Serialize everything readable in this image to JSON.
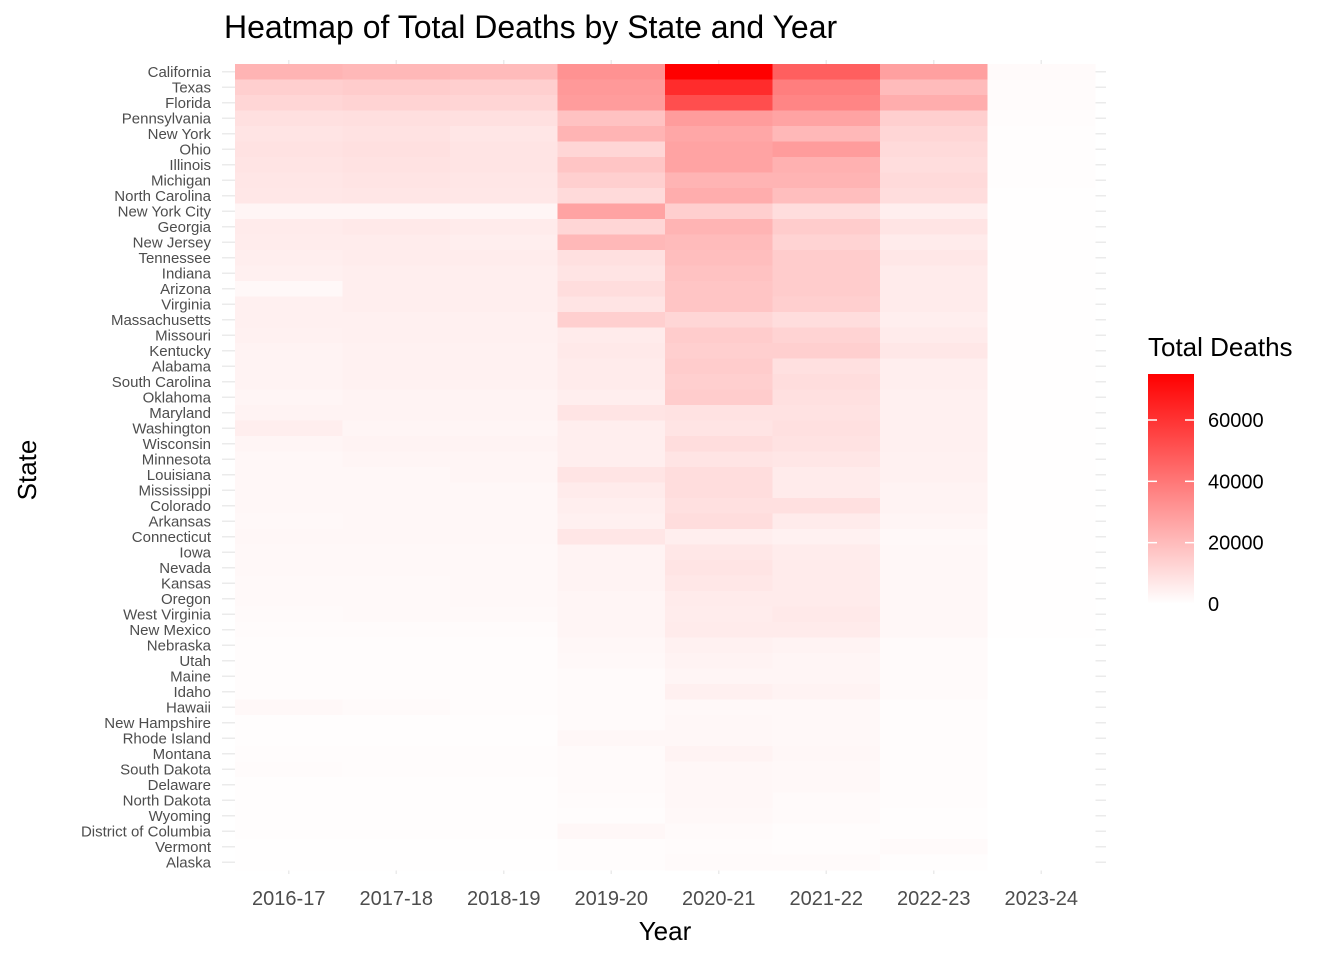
{
  "chart_data": {
    "type": "heatmap",
    "title": "Heatmap of Total Deaths by State and Year",
    "xlabel": "Year",
    "ylabel": "State",
    "x_categories": [
      "2016-17",
      "2017-18",
      "2018-19",
      "2019-20",
      "2020-21",
      "2021-22",
      "2022-23",
      "2023-24"
    ],
    "y_categories": [
      "California",
      "Texas",
      "Florida",
      "Pennsylvania",
      "New York",
      "Ohio",
      "Illinois",
      "Michigan",
      "North Carolina",
      "New York City",
      "Georgia",
      "New Jersey",
      "Tennessee",
      "Indiana",
      "Arizona",
      "Virginia",
      "Massachusetts",
      "Missouri",
      "Kentucky",
      "Alabama",
      "South Carolina",
      "Oklahoma",
      "Maryland",
      "Washington",
      "Wisconsin",
      "Minnesota",
      "Louisiana",
      "Mississippi",
      "Colorado",
      "Arkansas",
      "Connecticut",
      "Iowa",
      "Nevada",
      "Kansas",
      "Oregon",
      "West Virginia",
      "New Mexico",
      "Nebraska",
      "Utah",
      "Maine",
      "Idaho",
      "Hawaii",
      "New Hampshire",
      "Rhode Island",
      "Montana",
      "South Dakota",
      "Delaware",
      "North Dakota",
      "Wyoming",
      "District of Columbia",
      "Vermont",
      "Alaska"
    ],
    "values": [
      [
        22000,
        21000,
        20000,
        32000,
        75000,
        47000,
        28000,
        1500
      ],
      [
        14000,
        15000,
        14000,
        30000,
        62000,
        38000,
        20000,
        1200
      ],
      [
        12000,
        13000,
        12500,
        29000,
        52000,
        36000,
        24000,
        1100
      ],
      [
        9000,
        9500,
        9000,
        18000,
        29000,
        27000,
        14000,
        800
      ],
      [
        8000,
        8500,
        7500,
        22000,
        26000,
        21000,
        12000,
        700
      ],
      [
        8500,
        9000,
        8000,
        12000,
        27000,
        29000,
        11000,
        600
      ],
      [
        8000,
        8500,
        8000,
        17000,
        27000,
        23000,
        10000,
        600
      ],
      [
        7500,
        8000,
        7500,
        14000,
        22000,
        22000,
        11000,
        500
      ],
      [
        7000,
        7500,
        7000,
        11000,
        24000,
        19000,
        10000,
        400
      ],
      [
        3000,
        3000,
        3000,
        27000,
        14000,
        10000,
        5000,
        300
      ],
      [
        6000,
        6500,
        6000,
        12000,
        22000,
        15000,
        8000,
        400
      ],
      [
        5500,
        5500,
        5000,
        21000,
        20000,
        13000,
        6000,
        300
      ],
      [
        5000,
        5500,
        5500,
        9000,
        19000,
        15000,
        7000,
        300
      ],
      [
        4500,
        5000,
        5000,
        8000,
        18000,
        15000,
        6000,
        300
      ],
      [
        2000,
        5000,
        5000,
        10000,
        17000,
        15000,
        6000,
        300
      ],
      [
        4500,
        5000,
        5000,
        8000,
        17000,
        14000,
        6000,
        300
      ],
      [
        4500,
        4500,
        4500,
        14000,
        12000,
        10000,
        5000,
        300
      ],
      [
        4000,
        4500,
        4500,
        6000,
        15000,
        13000,
        6000,
        300
      ],
      [
        3500,
        4000,
        4000,
        6500,
        14000,
        14000,
        7000,
        300
      ],
      [
        3500,
        4000,
        4000,
        6000,
        15000,
        9000,
        5000,
        300
      ],
      [
        3500,
        4000,
        4000,
        6000,
        14000,
        10000,
        5000,
        300
      ],
      [
        3000,
        3500,
        3500,
        5000,
        15000,
        9000,
        4500,
        300
      ],
      [
        3500,
        3500,
        3500,
        8000,
        8500,
        8500,
        4500,
        300
      ],
      [
        5000,
        3000,
        3000,
        5000,
        8000,
        9000,
        4500,
        300
      ],
      [
        3000,
        3500,
        3500,
        5000,
        10000,
        8500,
        4500,
        200
      ],
      [
        2500,
        3000,
        3000,
        5000,
        8000,
        7500,
        4000,
        200
      ],
      [
        2500,
        2500,
        3000,
        8000,
        10000,
        6000,
        4000,
        200
      ],
      [
        2500,
        2500,
        2500,
        6000,
        10000,
        6000,
        3500,
        200
      ],
      [
        2500,
        2500,
        2500,
        5000,
        9000,
        9000,
        3500,
        200
      ],
      [
        2000,
        2500,
        2500,
        4500,
        10000,
        6000,
        3000,
        200
      ],
      [
        2500,
        2500,
        2500,
        7500,
        5000,
        4000,
        2000,
        200
      ],
      [
        2000,
        2000,
        2000,
        3500,
        7000,
        5500,
        2500,
        200
      ],
      [
        2000,
        2000,
        2000,
        3500,
        8000,
        6000,
        2500,
        200
      ],
      [
        1800,
        1800,
        2000,
        3500,
        7000,
        6000,
        2500,
        200
      ],
      [
        1800,
        1800,
        2000,
        3000,
        6000,
        6000,
        2500,
        200
      ],
      [
        1500,
        1800,
        1800,
        3000,
        5500,
        6500,
        2500,
        200
      ],
      [
        1200,
        1200,
        1200,
        3000,
        6000,
        6000,
        2500,
        200
      ],
      [
        1000,
        1000,
        1000,
        2500,
        4000,
        3500,
        1500,
        100
      ],
      [
        1000,
        1000,
        1000,
        2000,
        3500,
        3000,
        1500,
        100
      ],
      [
        800,
        800,
        800,
        1500,
        3000,
        3000,
        1500,
        100
      ],
      [
        800,
        800,
        800,
        1500,
        4500,
        3500,
        1500,
        100
      ],
      [
        2000,
        1500,
        1000,
        1500,
        2000,
        2000,
        1000,
        100
      ],
      [
        700,
        700,
        700,
        1500,
        2500,
        2000,
        1000,
        100
      ],
      [
        700,
        700,
        700,
        2500,
        2500,
        2000,
        1000,
        100
      ],
      [
        800,
        800,
        800,
        1500,
        3500,
        2500,
        1000,
        100
      ],
      [
        1200,
        800,
        800,
        1500,
        2500,
        2000,
        1000,
        100
      ],
      [
        700,
        700,
        700,
        1500,
        2500,
        2000,
        1000,
        100
      ],
      [
        600,
        600,
        600,
        1200,
        2500,
        1500,
        800,
        100
      ],
      [
        500,
        500,
        500,
        1000,
        2000,
        1500,
        700,
        100
      ],
      [
        500,
        500,
        500,
        2500,
        1500,
        1000,
        600,
        100
      ],
      [
        400,
        400,
        400,
        800,
        1200,
        1000,
        1500,
        100
      ],
      [
        400,
        400,
        400,
        800,
        1500,
        1500,
        700,
        100
      ]
    ],
    "color_scale": {
      "low": "#ffffff",
      "high": "#ff0000",
      "min": 0,
      "max": 75000
    },
    "legend": {
      "title": "Total Deaths",
      "ticks": [
        0,
        20000,
        40000,
        60000
      ],
      "position": "right"
    },
    "grid": true
  }
}
